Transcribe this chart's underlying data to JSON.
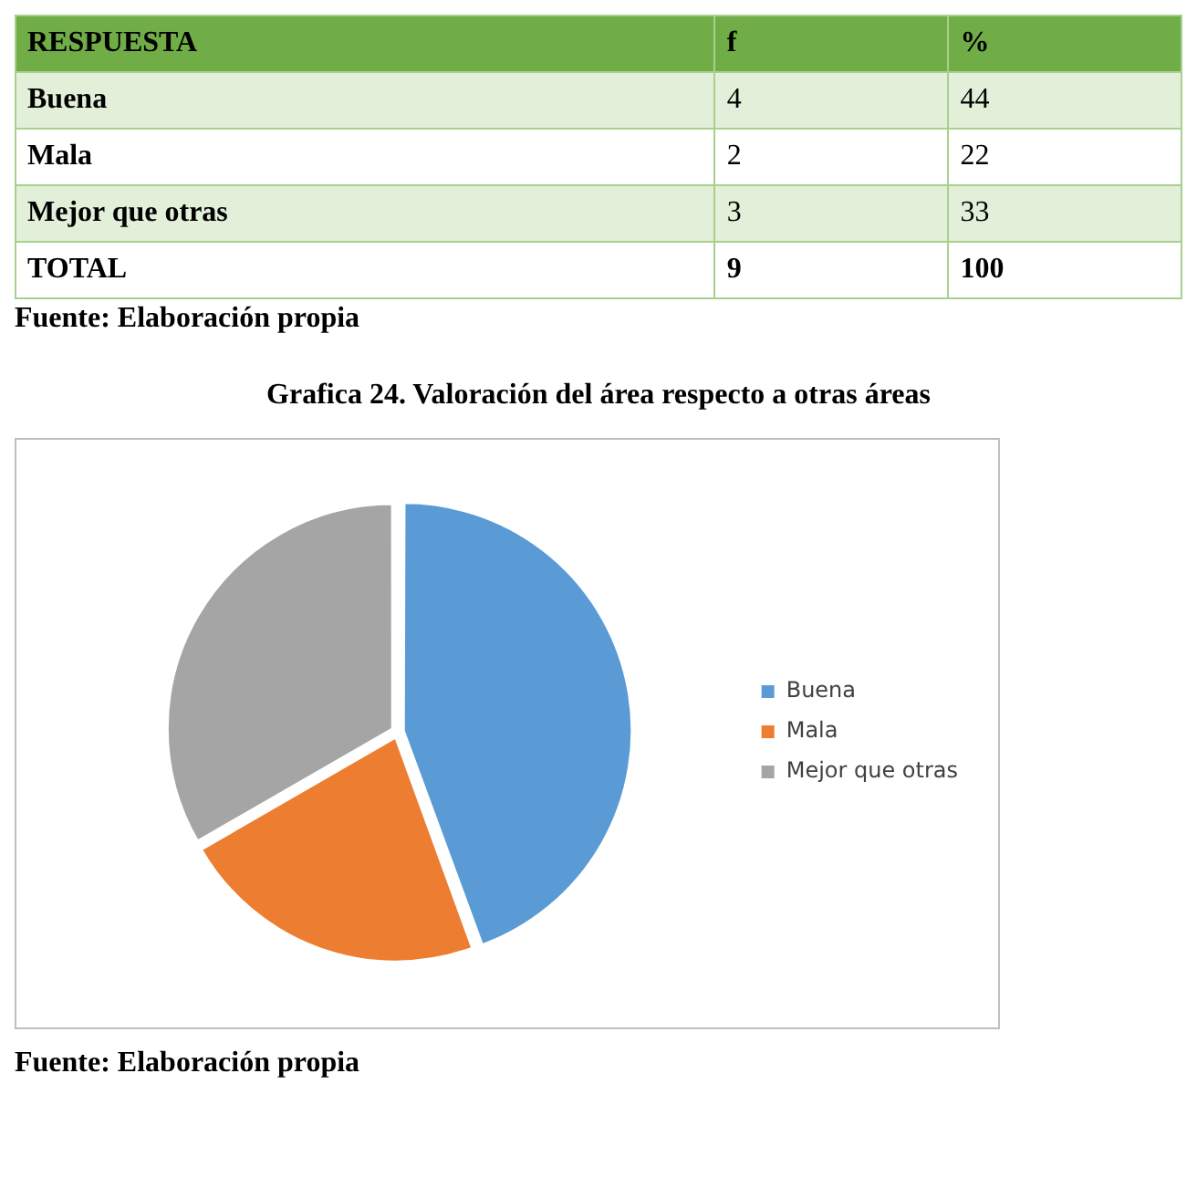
{
  "chart_data": [
    {
      "type": "other",
      "categories": [
        "Buena",
        "Mala",
        "Mejor que otras"
      ],
      "series": [
        {
          "name": "f",
          "values": [
            4,
            2,
            3
          ],
          "colors": [
            "#e2efd9",
            "#ffffff",
            "#e2efd9"
          ]
        },
        {
          "name": "%",
          "values": [
            44,
            22,
            33
          ],
          "colors": [
            "#e2efd9",
            "#ffffff",
            "#e2efd9"
          ]
        }
      ],
      "data_labels": true,
      "totals": [
        "9",
        "100"
      ],
      "annotations": [
        "RESPUESTA",
        "TOTAL",
        "Fuente: Elaboración propia"
      ]
    },
    {
      "type": "pie",
      "title": "Grafica 24. Valoración del área respecto a otras áreas",
      "categories": [
        "Buena",
        "Mala",
        "Mejor que otras"
      ],
      "values": [
        44.4,
        22.2,
        33.3
      ],
      "colors": [
        "#5b9bd5",
        "#ed7d31",
        "#a5a5a5"
      ],
      "legend": "right",
      "annotations": [
        "Fuente: Elaboración propia"
      ]
    }
  ]
}
